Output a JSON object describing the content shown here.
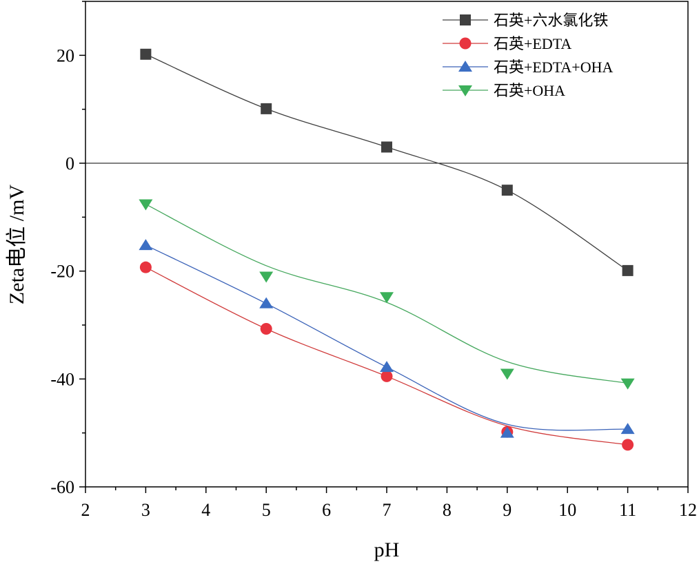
{
  "chart_data": {
    "type": "line",
    "xlabel": "pH",
    "ylabel": "Zeta电位 /mV",
    "xlim": [
      2,
      12
    ],
    "ylim": [
      -60,
      30
    ],
    "xticks": [
      "2",
      "3",
      "4",
      "5",
      "6",
      "7",
      "8",
      "9",
      "10",
      "11",
      "12"
    ],
    "yticks": [
      "-60",
      "-40",
      "-20",
      "0",
      "20"
    ],
    "zero_line": true,
    "grid": false,
    "legend_position": "top-right",
    "x": [
      3,
      5,
      7,
      9,
      11
    ],
    "series": [
      {
        "name": "石英+六水氯化铁",
        "color": "#404040",
        "line_color": "#404040",
        "marker": "square",
        "values": [
          20.2,
          10.1,
          3.0,
          -5.0,
          -19.9
        ]
      },
      {
        "name": "石英+EDTA",
        "color": "#e8343f",
        "line_color": "#d03a3a",
        "marker": "circle",
        "values": [
          -19.3,
          -30.7,
          -39.5,
          -49.8,
          -52.2
        ]
      },
      {
        "name": "石英+EDTA+OHA",
        "color": "#3c6fc4",
        "line_color": "#3a62b8",
        "marker": "triangle-up",
        "values": [
          -15.2,
          -26.0,
          -37.8,
          -50.0,
          -49.3
        ]
      },
      {
        "name": "石英+OHA",
        "color": "#3cb05a",
        "line_color": "#46a85e",
        "marker": "triangle-down",
        "values": [
          -7.6,
          -21.0,
          -24.8,
          -39.0,
          -40.8
        ]
      }
    ],
    "fit_curves": [
      [
        20.2,
        10.1,
        3.0,
        -5.0,
        -19.9
      ],
      [
        -19.3,
        -30.7,
        -39.5,
        -48.7,
        -52.2
      ],
      [
        -15.2,
        -26.0,
        -37.8,
        -48.4,
        -49.3
      ],
      [
        -7.6,
        -19.0,
        -25.8,
        -36.8,
        -40.8
      ]
    ]
  }
}
